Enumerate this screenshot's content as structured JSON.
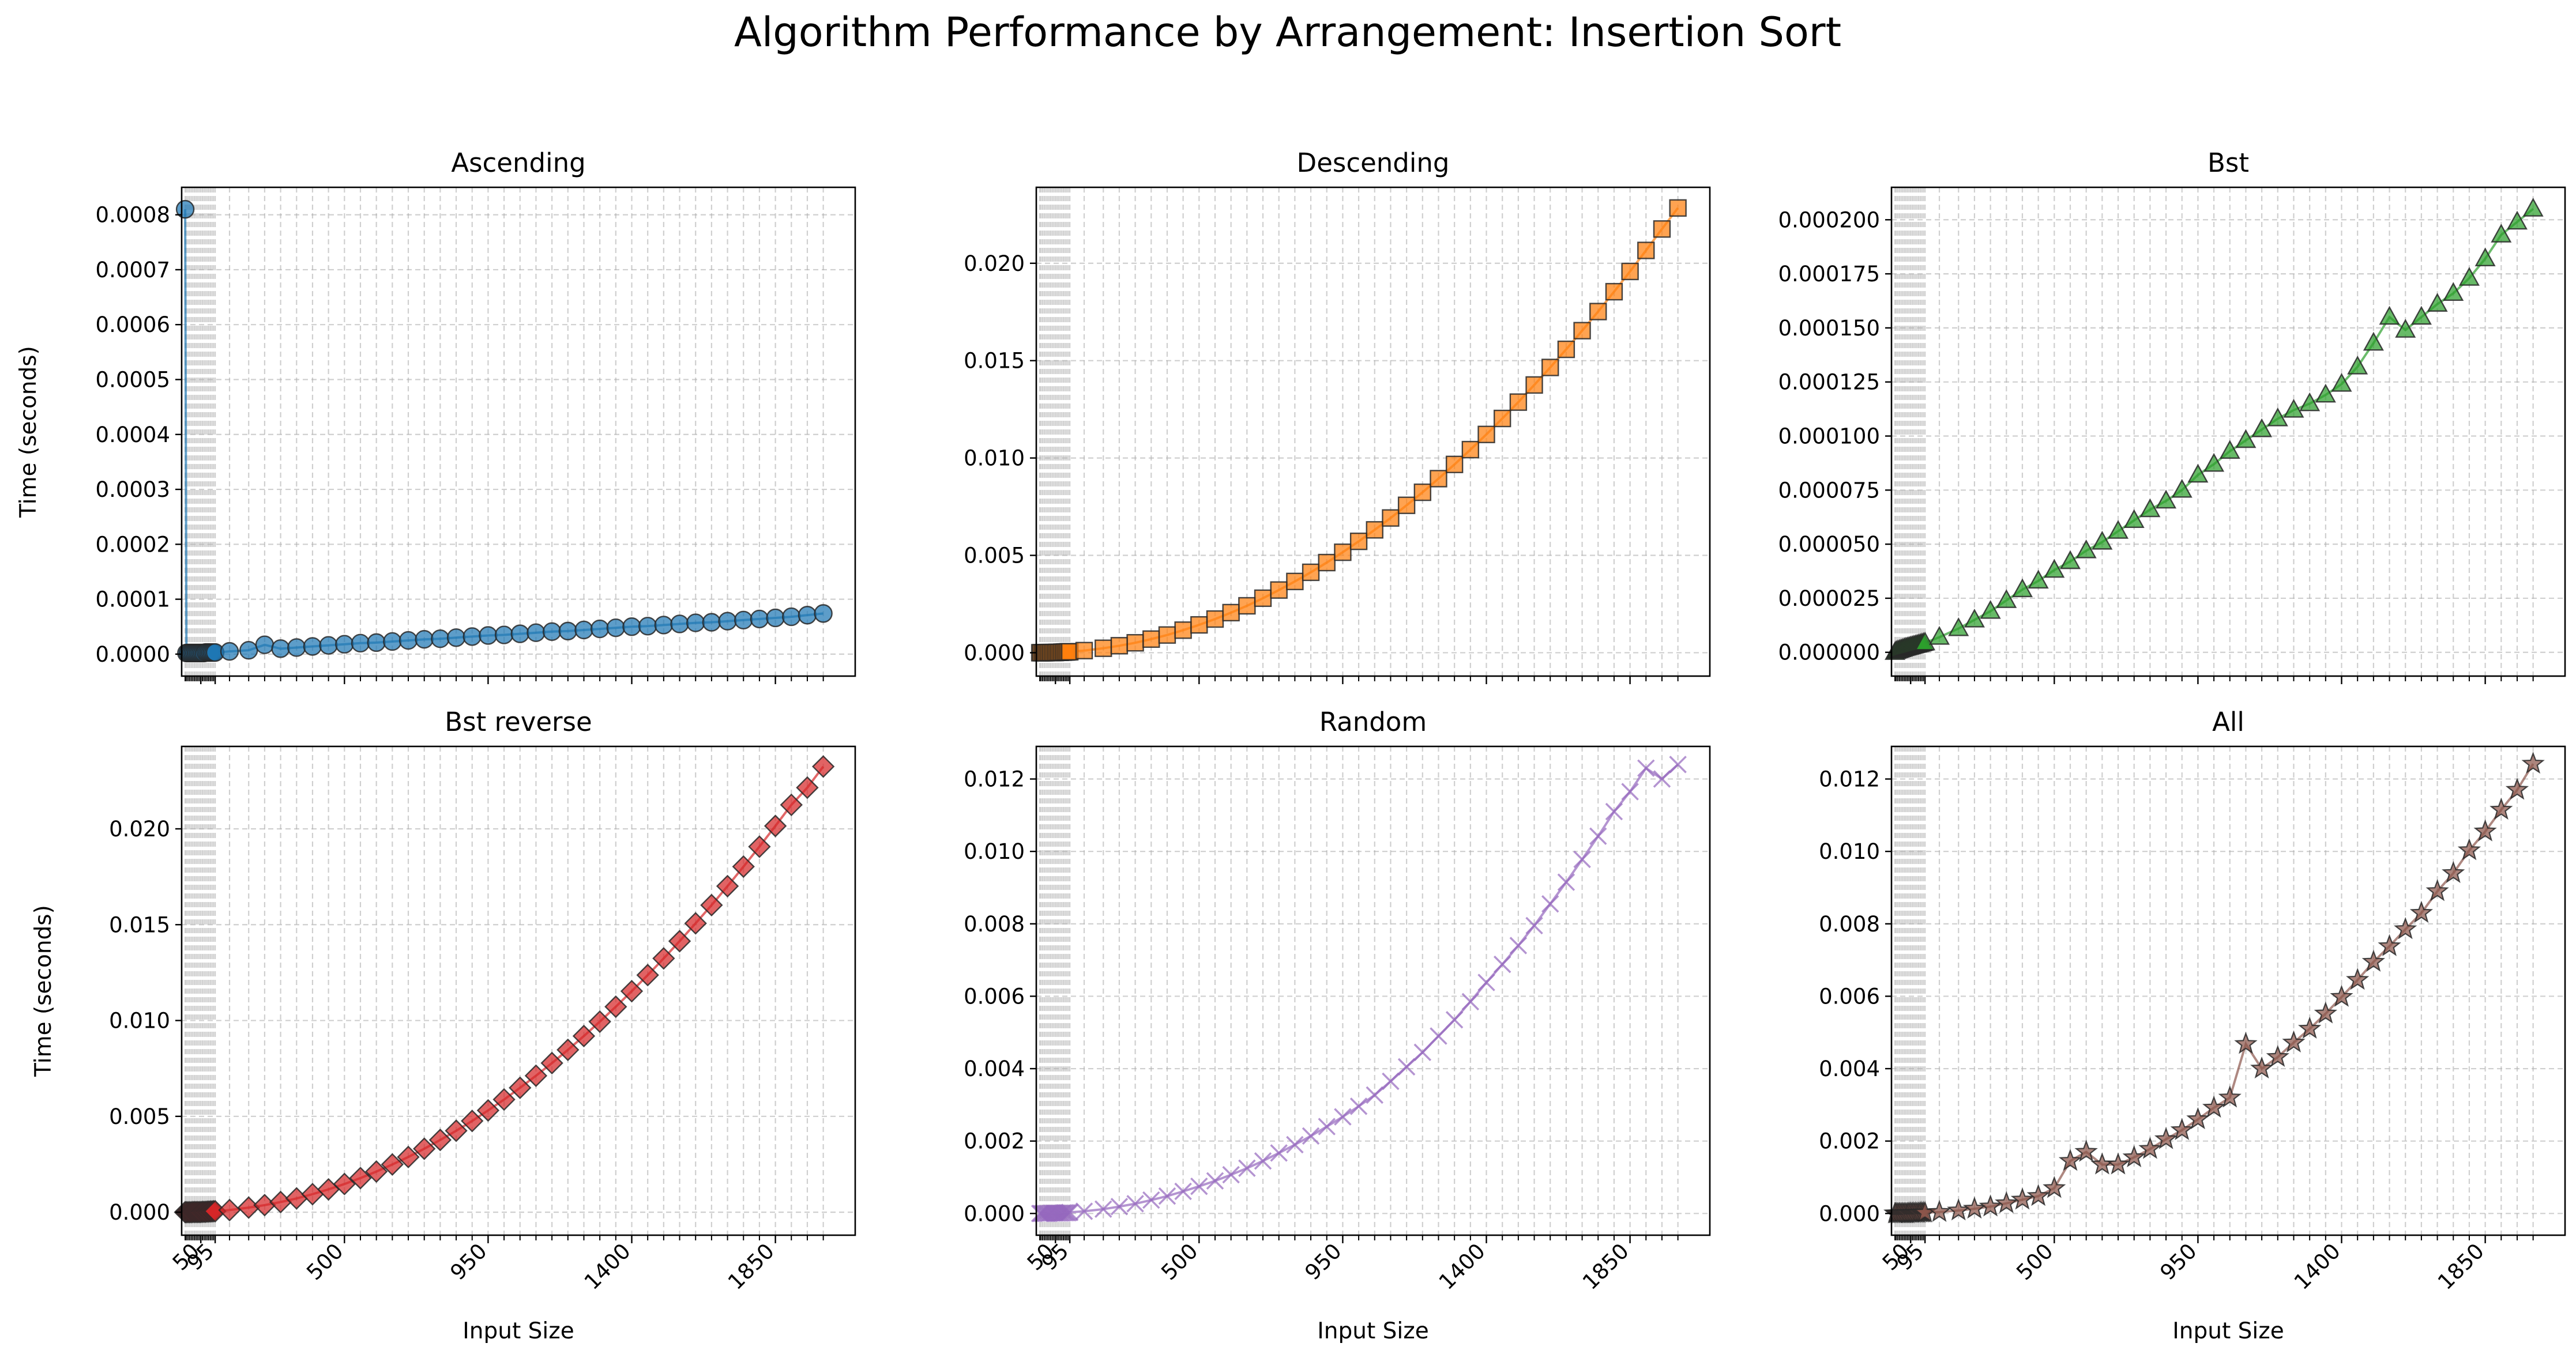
{
  "figure": {
    "title": "Algorithm Performance by Arrangement: Insertion Sort",
    "xlabel": "Input Size",
    "ylabel": "Time (seconds)"
  },
  "chart_data": [
    {
      "type": "line",
      "title": "Ascending",
      "color": "#1f77b4",
      "marker": "circle",
      "xlim": [
        -10,
        2100
      ],
      "ylim": [
        -4e-05,
        0.00085
      ],
      "yticks": [
        0,
        0.0001,
        0.0002,
        0.0003,
        0.0004,
        0.0005,
        0.0006,
        0.0007,
        0.0008
      ],
      "ytick_labels": [
        "0.0000",
        "0.0001",
        "0.0002",
        "0.0003",
        "0.0004",
        "0.0005",
        "0.0006",
        "0.0007",
        "0.0008"
      ],
      "x": [
        1,
        5,
        10,
        15,
        20,
        25,
        30,
        35,
        40,
        45,
        50,
        55,
        60,
        65,
        70,
        75,
        80,
        85,
        90,
        95,
        140,
        200,
        250,
        300,
        350,
        400,
        450,
        500,
        550,
        600,
        650,
        700,
        750,
        800,
        850,
        900,
        950,
        1000,
        1050,
        1100,
        1150,
        1200,
        1250,
        1300,
        1350,
        1400,
        1450,
        1500,
        1550,
        1600,
        1650,
        1700,
        1750,
        1800,
        1850,
        1900,
        1950,
        2000
      ],
      "y": [
        0.00081,
        2e-06,
        2e-06,
        2e-06,
        2e-06,
        2e-06,
        2e-06,
        2e-06,
        2e-06,
        2e-06,
        2e-06,
        2e-06,
        2e-06,
        3e-06,
        3e-06,
        3e-06,
        3e-06,
        3e-06,
        3e-06,
        3e-06,
        5e-06,
        7e-06,
        1.7e-05,
        1e-05,
        1.2e-05,
        1.4e-05,
        1.6e-05,
        1.8e-05,
        2e-05,
        2.1e-05,
        2.3e-05,
        2.5e-05,
        2.7e-05,
        2.8e-05,
        3e-05,
        3.2e-05,
        3.4e-05,
        3.5e-05,
        3.7e-05,
        3.9e-05,
        4.1e-05,
        4.2e-05,
        4.4e-05,
        4.6e-05,
        4.8e-05,
        5e-05,
        5.1e-05,
        5.3e-05,
        5.5e-05,
        5.7e-05,
        5.8e-05,
        6e-05,
        6.2e-05,
        6.4e-05,
        6.6e-05,
        6.8e-05,
        7.1e-05,
        7.4e-05
      ]
    },
    {
      "type": "line",
      "title": "Descending",
      "color": "#ff7f0e",
      "marker": "square",
      "xlim": [
        -10,
        2100
      ],
      "ylim": [
        -0.0012,
        0.0239
      ],
      "yticks": [
        0,
        0.005,
        0.01,
        0.015,
        0.02
      ],
      "ytick_labels": [
        "0.000",
        "0.005",
        "0.010",
        "0.015",
        "0.020"
      ],
      "x": [
        1,
        5,
        10,
        15,
        20,
        25,
        30,
        35,
        40,
        45,
        50,
        55,
        60,
        65,
        70,
        75,
        80,
        85,
        90,
        95,
        140,
        200,
        250,
        300,
        350,
        400,
        450,
        500,
        550,
        600,
        650,
        700,
        750,
        800,
        850,
        900,
        950,
        1000,
        1050,
        1100,
        1150,
        1200,
        1250,
        1300,
        1350,
        1400,
        1450,
        1500,
        1550,
        1600,
        1650,
        1700,
        1750,
        1800,
        1850,
        1900,
        1950,
        2000
      ],
      "y": [
        0.0,
        0.0,
        0.0,
        0.0,
        0.0,
        1e-05,
        1e-05,
        1e-05,
        1e-05,
        1e-05,
        1e-05,
        2e-05,
        2e-05,
        2e-05,
        3e-05,
        3e-05,
        4e-05,
        4e-05,
        5e-05,
        5e-05,
        0.00011,
        0.00023,
        0.00036,
        0.00051,
        0.0007,
        0.00091,
        0.00116,
        0.00143,
        0.00173,
        0.00206,
        0.00241,
        0.0028,
        0.00322,
        0.00366,
        0.00413,
        0.00463,
        0.00516,
        0.00572,
        0.00631,
        0.00692,
        0.00757,
        0.00824,
        0.00894,
        0.00967,
        0.01043,
        0.01121,
        0.01203,
        0.01287,
        0.01375,
        0.01465,
        0.01558,
        0.01654,
        0.01752,
        0.01854,
        0.01958,
        0.02066,
        0.02176,
        0.02284
      ]
    },
    {
      "type": "line",
      "title": "Bst",
      "color": "#2ca02c",
      "marker": "triangle",
      "xlim": [
        -10,
        2100
      ],
      "ylim": [
        -1.1e-05,
        0.000215
      ],
      "yticks": [
        0,
        2.5e-05,
        5e-05,
        7.5e-05,
        0.0001,
        0.000125,
        0.00015,
        0.000175,
        0.0002
      ],
      "ytick_labels": [
        "0.000000",
        "0.000025",
        "0.000050",
        "0.000075",
        "0.000100",
        "0.000125",
        "0.000150",
        "0.000175",
        "0.000200"
      ],
      "x": [
        1,
        5,
        10,
        15,
        20,
        25,
        30,
        35,
        40,
        45,
        50,
        55,
        60,
        65,
        70,
        75,
        80,
        85,
        90,
        95,
        140,
        200,
        250,
        300,
        350,
        400,
        450,
        500,
        550,
        600,
        650,
        700,
        750,
        800,
        850,
        900,
        950,
        1000,
        1050,
        1100,
        1150,
        1200,
        1250,
        1300,
        1350,
        1400,
        1450,
        1500,
        1550,
        1600,
        1650,
        1700,
        1750,
        1800,
        1850,
        1900,
        1950,
        2000
      ],
      "y": [
        0.0,
        5e-07,
        8e-07,
        1e-06,
        1.3e-06,
        1.5e-06,
        1.8e-06,
        2e-06,
        2.2e-06,
        2.4e-06,
        2.6e-06,
        2.8e-06,
        3e-06,
        3.2e-06,
        3.4e-06,
        3.6e-06,
        3.8e-06,
        4e-06,
        4.2e-06,
        4.4e-06,
        7e-06,
        1.1e-05,
        1.5e-05,
        1.9e-05,
        2.4e-05,
        2.9e-05,
        3.3e-05,
        3.8e-05,
        4.2e-05,
        4.7e-05,
        5.1e-05,
        5.6e-05,
        6.1e-05,
        6.6e-05,
        7e-05,
        7.5e-05,
        8.2e-05,
        8.7e-05,
        9.3e-05,
        9.8e-05,
        0.000103,
        0.000108,
        0.000112,
        0.000115,
        0.000119,
        0.000124,
        0.000132,
        0.000143,
        0.000155,
        0.000149,
        0.000155,
        0.000161,
        0.000166,
        0.000173,
        0.000182,
        0.000193,
        0.000199,
        0.000205
      ]
    },
    {
      "type": "line",
      "title": "Bst reverse",
      "color": "#d62728",
      "marker": "diamond",
      "xlim": [
        -10,
        2100
      ],
      "ylim": [
        -0.0012,
        0.0243
      ],
      "yticks": [
        0,
        0.005,
        0.01,
        0.015,
        0.02
      ],
      "ytick_labels": [
        "0.000",
        "0.005",
        "0.010",
        "0.015",
        "0.020"
      ],
      "x": [
        1,
        5,
        10,
        15,
        20,
        25,
        30,
        35,
        40,
        45,
        50,
        55,
        60,
        65,
        70,
        75,
        80,
        85,
        90,
        95,
        140,
        200,
        250,
        300,
        350,
        400,
        450,
        500,
        550,
        600,
        650,
        700,
        750,
        800,
        850,
        900,
        950,
        1000,
        1050,
        1100,
        1150,
        1200,
        1250,
        1300,
        1350,
        1400,
        1450,
        1500,
        1550,
        1600,
        1650,
        1700,
        1750,
        1800,
        1850,
        1900,
        1950,
        2000
      ],
      "y": [
        0.0,
        0.0,
        0.0,
        0.0,
        0.0,
        1e-05,
        1e-05,
        1e-05,
        1e-05,
        1e-05,
        1e-05,
        2e-05,
        2e-05,
        2e-05,
        3e-05,
        3e-05,
        4e-05,
        4e-05,
        5e-05,
        5e-05,
        0.00011,
        0.00024,
        0.00037,
        0.00053,
        0.00072,
        0.00094,
        0.00119,
        0.00147,
        0.00178,
        0.00212,
        0.00249,
        0.00288,
        0.00331,
        0.00377,
        0.00425,
        0.00476,
        0.00531,
        0.00588,
        0.00649,
        0.00712,
        0.00778,
        0.00847,
        0.00919,
        0.00994,
        0.01072,
        0.01153,
        0.01237,
        0.01324,
        0.01414,
        0.01507,
        0.01602,
        0.01701,
        0.01803,
        0.01907,
        0.02015,
        0.02125,
        0.02215,
        0.02325
      ]
    },
    {
      "type": "line",
      "title": "Random",
      "color": "#9467bd",
      "marker": "x",
      "xlim": [
        -10,
        2100
      ],
      "ylim": [
        -0.0006,
        0.0129
      ],
      "yticks": [
        0,
        0.002,
        0.004,
        0.006,
        0.008,
        0.01,
        0.012
      ],
      "ytick_labels": [
        "0.000",
        "0.002",
        "0.004",
        "0.006",
        "0.008",
        "0.010",
        "0.012"
      ],
      "x": [
        1,
        5,
        10,
        15,
        20,
        25,
        30,
        35,
        40,
        45,
        50,
        55,
        60,
        65,
        70,
        75,
        80,
        85,
        90,
        95,
        140,
        200,
        250,
        300,
        350,
        400,
        450,
        500,
        550,
        600,
        650,
        700,
        750,
        800,
        850,
        900,
        950,
        1000,
        1050,
        1100,
        1150,
        1200,
        1250,
        1300,
        1350,
        1400,
        1450,
        1500,
        1550,
        1600,
        1650,
        1700,
        1750,
        1800,
        1850,
        1900,
        1950,
        2000
      ],
      "y": [
        0.0,
        0.0,
        0.0,
        0.0,
        0.0,
        0.0,
        0.0,
        1e-05,
        1e-05,
        1e-05,
        1e-05,
        1e-05,
        1e-05,
        1e-05,
        1e-05,
        2e-05,
        2e-05,
        2e-05,
        2e-05,
        3e-05,
        6e-05,
        0.00012,
        0.00019,
        0.00027,
        0.00037,
        0.00048,
        0.00061,
        0.00075,
        0.0009,
        0.00107,
        0.00125,
        0.00145,
        0.00167,
        0.0019,
        0.00214,
        0.0024,
        0.00267,
        0.00296,
        0.00327,
        0.00365,
        0.00405,
        0.00445,
        0.0049,
        0.00535,
        0.00585,
        0.00638,
        0.00688,
        0.0074,
        0.00795,
        0.00855,
        0.00915,
        0.00978,
        0.01042,
        0.0111,
        0.01165,
        0.0123,
        0.012,
        0.0124
      ]
    },
    {
      "type": "line",
      "title": "All",
      "color": "#8c564b",
      "marker": "star",
      "xlim": [
        -10,
        2100
      ],
      "ylim": [
        -0.0006,
        0.0129
      ],
      "yticks": [
        0,
        0.002,
        0.004,
        0.006,
        0.008,
        0.01,
        0.012
      ],
      "ytick_labels": [
        "0.000",
        "0.002",
        "0.004",
        "0.006",
        "0.008",
        "0.010",
        "0.012"
      ],
      "x": [
        1,
        5,
        10,
        15,
        20,
        25,
        30,
        35,
        40,
        45,
        50,
        55,
        60,
        65,
        70,
        75,
        80,
        85,
        90,
        95,
        140,
        200,
        250,
        300,
        350,
        400,
        450,
        500,
        550,
        600,
        650,
        700,
        750,
        800,
        850,
        900,
        950,
        1000,
        1050,
        1100,
        1150,
        1200,
        1250,
        1300,
        1350,
        1400,
        1450,
        1500,
        1550,
        1600,
        1650,
        1700,
        1750,
        1800,
        1850,
        1900,
        1950,
        2000
      ],
      "y": [
        0.0,
        0.0,
        0.0,
        0.0,
        0.0,
        0.0,
        0.0,
        0.0,
        0.0,
        1e-05,
        1e-05,
        1e-05,
        1e-05,
        1e-05,
        1e-05,
        1e-05,
        2e-05,
        2e-05,
        2e-05,
        2e-05,
        4e-05,
        8e-05,
        0.00013,
        0.00019,
        0.00028,
        0.00038,
        0.00048,
        0.0007,
        0.00145,
        0.0017,
        0.00135,
        0.00135,
        0.00155,
        0.00178,
        0.00205,
        0.0023,
        0.0026,
        0.00292,
        0.0032,
        0.00468,
        0.004,
        0.00432,
        0.00472,
        0.0051,
        0.00552,
        0.00598,
        0.00645,
        0.00695,
        0.00738,
        0.00785,
        0.0083,
        0.0089,
        0.0094,
        0.01003,
        0.01055,
        0.01115,
        0.0117,
        0.01242
      ]
    }
  ],
  "x_axis": {
    "ticks": [
      50,
      95,
      500,
      950,
      1400,
      1850
    ],
    "tick_labels": [
      "50",
      "95",
      "500",
      "950",
      "1400",
      "1850"
    ],
    "minor_ticks": [
      1,
      5,
      10,
      15,
      20,
      25,
      30,
      35,
      40,
      45,
      55,
      60,
      65,
      70,
      75,
      80,
      85,
      90,
      140,
      200,
      250,
      300,
      350,
      400,
      450,
      550,
      600,
      650,
      700,
      750,
      800,
      850,
      900,
      1000,
      1050,
      1100,
      1150,
      1200,
      1250,
      1300,
      1350,
      1450,
      1500,
      1550,
      1600,
      1650,
      1700,
      1750,
      1800,
      1900,
      1950,
      2000
    ]
  }
}
